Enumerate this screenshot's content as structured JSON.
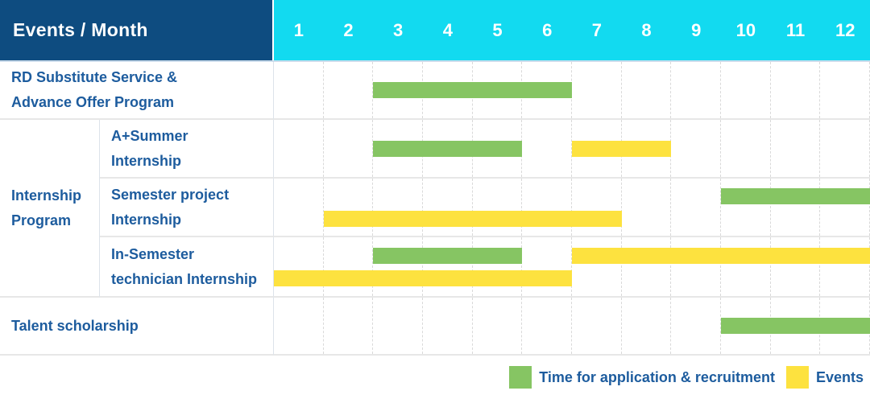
{
  "table": {
    "corner_label": "Events / Month",
    "months": [
      "1",
      "2",
      "3",
      "4",
      "5",
      "6",
      "7",
      "8",
      "9",
      "10",
      "11",
      "12"
    ]
  },
  "legend": {
    "items": [
      {
        "label": "Time for application & recruitment",
        "color_key": "green"
      },
      {
        "label": "Events",
        "color_key": "yellow"
      }
    ]
  },
  "colors": {
    "header_bg": "#0e4c80",
    "months_bg": "#12daf0",
    "header_text": "#ffffff",
    "label_text": "#1d5c9e",
    "green": "#86c563",
    "yellow": "#fde23f"
  },
  "chart_data": {
    "type": "bar",
    "subtype": "gantt",
    "title": "Events / Month",
    "x_categories": [
      "1",
      "2",
      "3",
      "4",
      "5",
      "6",
      "7",
      "8",
      "9",
      "10",
      "11",
      "12"
    ],
    "x_range": [
      1,
      12
    ],
    "grid": true,
    "legend_position": "bottom-right",
    "legend": [
      {
        "label": "Time for application & recruitment",
        "color": "#86c563"
      },
      {
        "label": "Events",
        "color": "#fde23f"
      }
    ],
    "rows": [
      {
        "label": "RD Substitute Service &\nAdvance Offer Program",
        "group": "",
        "tracks": [
          [
            {
              "color_key": "green",
              "start_month": 3,
              "end_month": 6
            }
          ]
        ]
      },
      {
        "label": "A+Summer\nInternship",
        "group": "Internship\nProgram",
        "tracks": [
          [
            {
              "color_key": "green",
              "start_month": 3,
              "end_month": 5
            },
            {
              "color_key": "yellow",
              "start_month": 7,
              "end_month": 8
            }
          ]
        ]
      },
      {
        "label": "Semester project\nInternship",
        "group": "Internship\nProgram",
        "tracks": [
          [
            {
              "color_key": "green",
              "start_month": 10,
              "end_month": 12
            }
          ],
          [
            {
              "color_key": "yellow",
              "start_month": 2,
              "end_month": 7
            }
          ]
        ]
      },
      {
        "label": "In-Semester\ntechnician Internship",
        "group": "Internship\nProgram",
        "tracks": [
          [
            {
              "color_key": "green",
              "start_month": 3,
              "end_month": 5
            },
            {
              "color_key": "yellow",
              "start_month": 7,
              "end_month": 12
            }
          ],
          [
            {
              "color_key": "yellow",
              "start_month": 1,
              "end_month": 6
            }
          ]
        ]
      },
      {
        "label": "Talent scholarship",
        "group": "",
        "tracks": [
          [
            {
              "color_key": "green",
              "start_month": 10,
              "end_month": 12
            }
          ]
        ]
      }
    ]
  }
}
